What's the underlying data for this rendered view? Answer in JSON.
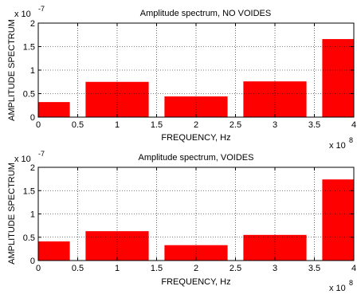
{
  "chart_data": [
    {
      "type": "bar",
      "title": "Amplitude spectrum, NO VOIDES",
      "xlabel": "FREQUENCY, Hz",
      "ylabel": "AMPLITUDE SPECTRUM",
      "x_exponent_label": "x 10",
      "x_exponent": "8",
      "y_exponent_label": "x 10",
      "y_exponent": "-7",
      "xlim": [
        0,
        4
      ],
      "ylim": [
        0,
        2
      ],
      "xticks": [
        0,
        0.5,
        1,
        1.5,
        2,
        2.5,
        3,
        3.5,
        4
      ],
      "xtick_labels": [
        "0",
        "0.5",
        "1",
        "1.5",
        "2",
        "2.5",
        "3",
        "3.5",
        "4"
      ],
      "yticks": [
        0,
        0.5,
        1,
        1.5,
        2
      ],
      "ytick_labels": [
        "0",
        "0.5",
        "1",
        "1.5",
        "2"
      ],
      "grid": true,
      "bar_width": 0.8,
      "x": [
        0,
        1,
        2,
        3,
        4
      ],
      "values": [
        0.32,
        0.75,
        0.44,
        0.76,
        1.66
      ]
    },
    {
      "type": "bar",
      "title": "Amplitude spectrum, VOIDES",
      "xlabel": "FREQUENCY, Hz",
      "ylabel": "AMPLITUDE SPECTRUM",
      "x_exponent_label": "x 10",
      "x_exponent": "8",
      "y_exponent_label": "x 10",
      "y_exponent": "-7",
      "xlim": [
        0,
        4
      ],
      "ylim": [
        0,
        2
      ],
      "xticks": [
        0,
        0.5,
        1,
        1.5,
        2,
        2.5,
        3,
        3.5,
        4
      ],
      "xtick_labels": [
        "0",
        "0.5",
        "1",
        "1.5",
        "2",
        "2.5",
        "3",
        "3.5",
        "4"
      ],
      "yticks": [
        0,
        0.5,
        1,
        1.5,
        2
      ],
      "ytick_labels": [
        "0",
        "0.5",
        "1",
        "1.5",
        "2"
      ],
      "grid": true,
      "bar_width": 0.8,
      "x": [
        0,
        1,
        2,
        3,
        4
      ],
      "values": [
        0.41,
        0.63,
        0.33,
        0.55,
        1.74
      ]
    }
  ],
  "colors": {
    "bar": "#ff0000",
    "grid": "#000000",
    "axes": "#000000",
    "background": "#ffffff"
  }
}
